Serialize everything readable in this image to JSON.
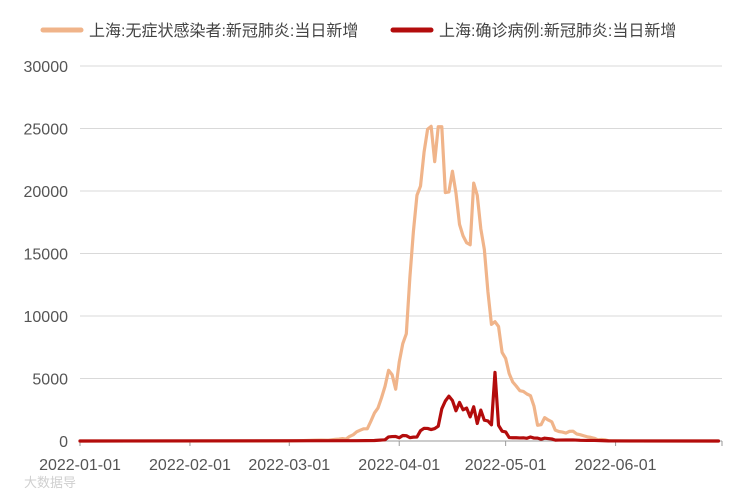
{
  "chart_data": {
    "type": "line",
    "title": "",
    "xlabel": "",
    "ylabel": "",
    "ylim": [
      0,
      30000
    ],
    "yticks": [
      "0",
      "5000",
      "10000",
      "15000",
      "20000",
      "25000",
      "30000"
    ],
    "xticks": [
      "2022-01-01",
      "2022-02-01",
      "2022-03-01",
      "2022-04-01",
      "2022-05-01",
      "2022-06-01"
    ],
    "xrange": [
      "2022-01-01",
      "2022-07-01"
    ],
    "grid": true,
    "legend_position": "top",
    "series": [
      {
        "name": "上海:无症状感染者:新冠肺炎:当日新增",
        "color": "#F0B48A",
        "points": [
          [
            "2022-01-01",
            0
          ],
          [
            "2022-02-28",
            0
          ],
          [
            "2022-03-03",
            14
          ],
          [
            "2022-03-06",
            45
          ],
          [
            "2022-03-08",
            62
          ],
          [
            "2022-03-10",
            76
          ],
          [
            "2022-03-12",
            64
          ],
          [
            "2022-03-14",
            130
          ],
          [
            "2022-03-15",
            150
          ],
          [
            "2022-03-16",
            197
          ],
          [
            "2022-03-17",
            150
          ],
          [
            "2022-03-18",
            366
          ],
          [
            "2022-03-19",
            492
          ],
          [
            "2022-03-20",
            734
          ],
          [
            "2022-03-21",
            865
          ],
          [
            "2022-03-22",
            977
          ],
          [
            "2022-03-23",
            979
          ],
          [
            "2022-03-24",
            1580
          ],
          [
            "2022-03-25",
            2231
          ],
          [
            "2022-03-26",
            2631
          ],
          [
            "2022-03-27",
            3450
          ],
          [
            "2022-03-28",
            4381
          ],
          [
            "2022-03-29",
            5656
          ],
          [
            "2022-03-30",
            5298
          ],
          [
            "2022-03-31",
            4144
          ],
          [
            "2022-04-01",
            6311
          ],
          [
            "2022-04-02",
            7788
          ],
          [
            "2022-04-03",
            8581
          ],
          [
            "2022-04-04",
            13086
          ],
          [
            "2022-04-05",
            16766
          ],
          [
            "2022-04-06",
            19660
          ],
          [
            "2022-04-07",
            20398
          ],
          [
            "2022-04-08",
            23107
          ],
          [
            "2022-04-09",
            24944
          ],
          [
            "2022-04-10",
            25173
          ],
          [
            "2022-04-11",
            22348
          ],
          [
            "2022-04-12",
            25141
          ],
          [
            "2022-04-13",
            25146
          ],
          [
            "2022-04-14",
            19872
          ],
          [
            "2022-04-15",
            19923
          ],
          [
            "2022-04-16",
            21582
          ],
          [
            "2022-04-17",
            19831
          ],
          [
            "2022-04-18",
            17332
          ],
          [
            "2022-04-19",
            16407
          ],
          [
            "2022-04-20",
            15861
          ],
          [
            "2022-04-21",
            15698
          ],
          [
            "2022-04-22",
            20634
          ],
          [
            "2022-04-23",
            19657
          ],
          [
            "2022-04-24",
            16983
          ],
          [
            "2022-04-25",
            15319
          ],
          [
            "2022-04-26",
            11956
          ],
          [
            "2022-04-27",
            9330
          ],
          [
            "2022-04-28",
            9545
          ],
          [
            "2022-04-29",
            9161
          ],
          [
            "2022-04-30",
            7084
          ],
          [
            "2022-05-01",
            6606
          ],
          [
            "2022-05-02",
            5395
          ],
          [
            "2022-05-03",
            4722
          ],
          [
            "2022-05-04",
            4390
          ],
          [
            "2022-05-05",
            4024
          ],
          [
            "2022-05-06",
            3961
          ],
          [
            "2022-05-07",
            3760
          ],
          [
            "2022-05-08",
            3625
          ],
          [
            "2022-05-09",
            2780
          ],
          [
            "2022-05-10",
            1259
          ],
          [
            "2022-05-11",
            1305
          ],
          [
            "2022-05-12",
            1869
          ],
          [
            "2022-05-13",
            1681
          ],
          [
            "2022-05-14",
            1540
          ],
          [
            "2022-05-15",
            869
          ],
          [
            "2022-05-16",
            759
          ],
          [
            "2022-05-17",
            715
          ],
          [
            "2022-05-18",
            637
          ],
          [
            "2022-05-19",
            770
          ],
          [
            "2022-05-20",
            784
          ],
          [
            "2022-05-21",
            570
          ],
          [
            "2022-05-22",
            503
          ],
          [
            "2022-05-23",
            422
          ],
          [
            "2022-05-24",
            338
          ],
          [
            "2022-05-25",
            290
          ],
          [
            "2022-05-26",
            219
          ],
          [
            "2022-05-27",
            93
          ],
          [
            "2022-05-28",
            122
          ],
          [
            "2022-05-29",
            93
          ],
          [
            "2022-05-30",
            20
          ],
          [
            "2022-05-31",
            15
          ],
          [
            "2022-06-01",
            10
          ],
          [
            "2022-06-05",
            0
          ],
          [
            "2022-06-30",
            0
          ]
        ]
      },
      {
        "name": "上海:确诊病例:新冠肺炎:当日新增",
        "color": "#B30C0C",
        "points": [
          [
            "2022-01-01",
            0
          ],
          [
            "2022-03-20",
            24
          ],
          [
            "2022-03-25",
            38
          ],
          [
            "2022-03-28",
            96
          ],
          [
            "2022-03-29",
            326
          ],
          [
            "2022-03-30",
            355
          ],
          [
            "2022-03-31",
            358
          ],
          [
            "2022-04-01",
            260
          ],
          [
            "2022-04-02",
            438
          ],
          [
            "2022-04-03",
            425
          ],
          [
            "2022-04-04",
            268
          ],
          [
            "2022-04-05",
            311
          ],
          [
            "2022-04-06",
            322
          ],
          [
            "2022-04-07",
            824
          ],
          [
            "2022-04-08",
            1015
          ],
          [
            "2022-04-09",
            1006
          ],
          [
            "2022-04-10",
            914
          ],
          [
            "2022-04-11",
            994
          ],
          [
            "2022-04-12",
            1189
          ],
          [
            "2022-04-13",
            2573
          ],
          [
            "2022-04-14",
            3200
          ],
          [
            "2022-04-15",
            3590
          ],
          [
            "2022-04-16",
            3238
          ],
          [
            "2022-04-17",
            2417
          ],
          [
            "2022-04-18",
            3084
          ],
          [
            "2022-04-19",
            2494
          ],
          [
            "2022-04-20",
            2634
          ],
          [
            "2022-04-21",
            1931
          ],
          [
            "2022-04-22",
            2736
          ],
          [
            "2022-04-23",
            1401
          ],
          [
            "2022-04-24",
            2472
          ],
          [
            "2022-04-25",
            1661
          ],
          [
            "2022-04-26",
            1606
          ],
          [
            "2022-04-27",
            1292
          ],
          [
            "2022-04-28",
            5487
          ],
          [
            "2022-04-29",
            1249
          ],
          [
            "2022-04-30",
            788
          ],
          [
            "2022-05-01",
            727
          ],
          [
            "2022-05-02",
            274
          ],
          [
            "2022-05-03",
            260
          ],
          [
            "2022-05-04",
            261
          ],
          [
            "2022-05-05",
            245
          ],
          [
            "2022-05-06",
            253
          ],
          [
            "2022-05-07",
            215
          ],
          [
            "2022-05-08",
            322
          ],
          [
            "2022-05-09",
            234
          ],
          [
            "2022-05-10",
            228
          ],
          [
            "2022-05-11",
            144
          ],
          [
            "2022-05-12",
            227
          ],
          [
            "2022-05-13",
            194
          ],
          [
            "2022-05-14",
            166
          ],
          [
            "2022-05-15",
            69
          ],
          [
            "2022-05-16",
            77
          ],
          [
            "2022-05-18",
            82
          ],
          [
            "2022-05-20",
            84
          ],
          [
            "2022-05-22",
            55
          ],
          [
            "2022-05-24",
            44
          ],
          [
            "2022-05-26",
            45
          ],
          [
            "2022-05-28",
            29
          ],
          [
            "2022-05-30",
            9
          ],
          [
            "2022-06-01",
            5
          ],
          [
            "2022-06-30",
            0
          ]
        ]
      }
    ]
  },
  "watermark": "大数据导"
}
